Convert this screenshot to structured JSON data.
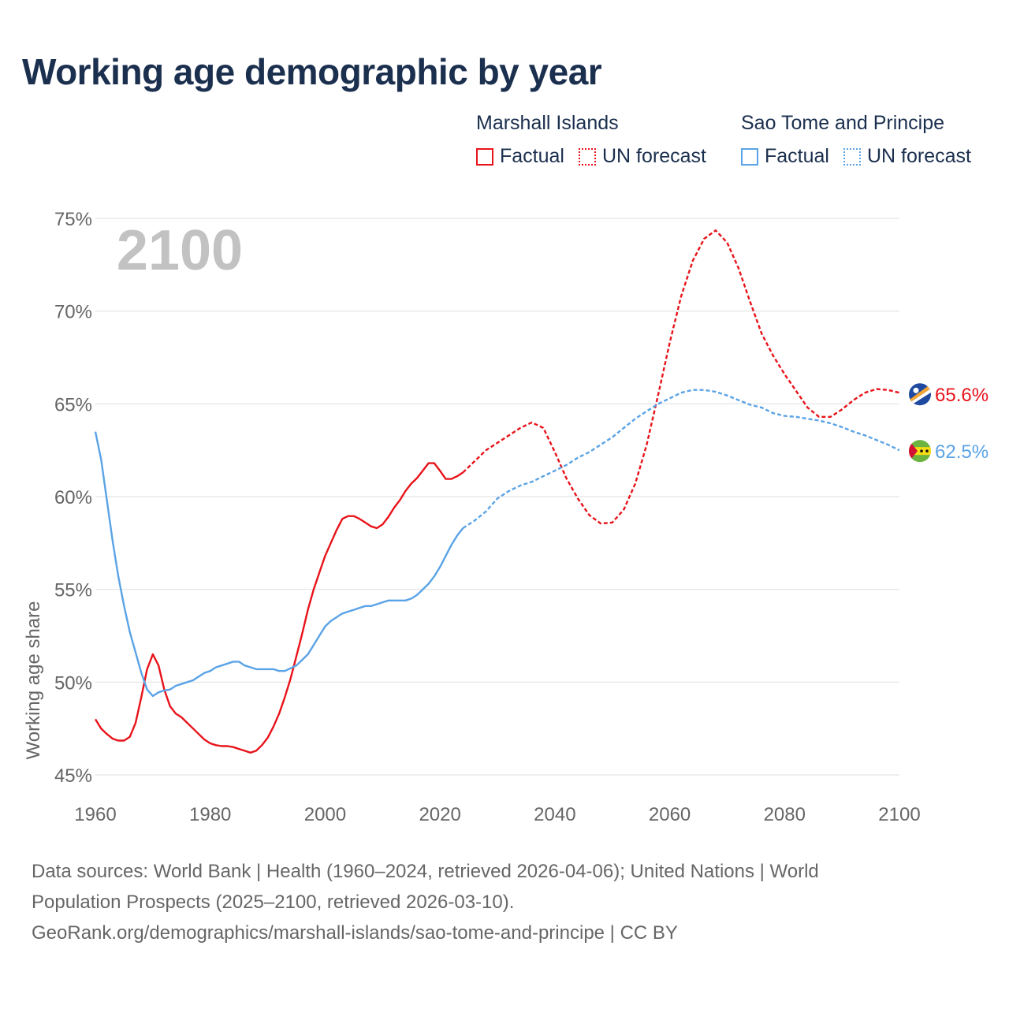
{
  "title": "Working age demographic by year",
  "colors": {
    "marshall": "#e8131a",
    "sao_tome": "#5aa3e6",
    "title": "#1b2f4e",
    "grid": "#e3e3e3",
    "axis_text": "#666666",
    "year_watermark": "#c2c2c2"
  },
  "legend": [
    {
      "name": "Marshall Islands",
      "factual_label": "Factual",
      "forecast_label": "UN forecast"
    },
    {
      "name": "Sao Tome and Principe",
      "factual_label": "Factual",
      "forecast_label": "UN forecast"
    }
  ],
  "chart_data": {
    "type": "line",
    "title": "Working age demographic by year",
    "xlabel": "",
    "ylabel": "Working age share",
    "xlim": [
      1960,
      2100
    ],
    "ylim": [
      45,
      75
    ],
    "x_ticks": [
      1960,
      1980,
      2000,
      2020,
      2040,
      2060,
      2080,
      2100
    ],
    "y_ticks": [
      45,
      50,
      55,
      60,
      65,
      70,
      75
    ],
    "y_tick_labels": [
      "45%",
      "50%",
      "55%",
      "60%",
      "65%",
      "70%",
      "75%"
    ],
    "year_display": "2100",
    "factual_range": "1960–2024",
    "forecast_range": "2025–2100",
    "series": [
      {
        "name": "Marshall Islands",
        "color": "#e8131a",
        "end_label": "65.6%",
        "flag_icon": "marshall-islands-flag-icon",
        "factual": {
          "x": [
            1960,
            1961,
            1962,
            1963,
            1964,
            1965,
            1966,
            1967,
            1968,
            1969,
            1970,
            1971,
            1972,
            1973,
            1974,
            1975,
            1976,
            1977,
            1978,
            1979,
            1980,
            1981,
            1982,
            1983,
            1984,
            1985,
            1986,
            1987,
            1988,
            1989,
            1990,
            1991,
            1992,
            1993,
            1994,
            1995,
            1996,
            1997,
            1998,
            1999,
            2000,
            2001,
            2002,
            2003,
            2004,
            2005,
            2006,
            2007,
            2008,
            2009,
            2010,
            2011,
            2012,
            2013,
            2014,
            2015,
            2016,
            2017,
            2018,
            2019,
            2020,
            2021,
            2022,
            2023,
            2024
          ],
          "y": [
            48.0,
            47.5,
            47.2,
            46.95,
            46.85,
            46.85,
            47.05,
            47.8,
            49.2,
            50.7,
            51.5,
            50.9,
            49.6,
            48.7,
            48.3,
            48.1,
            47.8,
            47.5,
            47.2,
            46.9,
            46.7,
            46.6,
            46.55,
            46.55,
            46.5,
            46.4,
            46.3,
            46.2,
            46.3,
            46.6,
            47.0,
            47.6,
            48.3,
            49.2,
            50.2,
            51.4,
            52.6,
            53.9,
            55.0,
            55.9,
            56.8,
            57.5,
            58.2,
            58.8,
            58.95,
            58.95,
            58.8,
            58.6,
            58.4,
            58.3,
            58.5,
            58.9,
            59.4,
            59.8,
            60.3,
            60.7,
            61.0,
            61.4,
            61.8,
            61.8,
            61.4,
            60.95,
            60.95,
            61.1,
            61.3
          ]
        },
        "forecast": {
          "x": [
            2024,
            2026,
            2028,
            2030,
            2032,
            2034,
            2036,
            2038,
            2040,
            2042,
            2044,
            2046,
            2048,
            2050,
            2052,
            2054,
            2056,
            2058,
            2060,
            2062,
            2064,
            2066,
            2068,
            2070,
            2072,
            2074,
            2076,
            2078,
            2080,
            2082,
            2084,
            2086,
            2088,
            2090,
            2092,
            2094,
            2096,
            2098,
            2100
          ],
          "y": [
            61.3,
            61.9,
            62.5,
            62.9,
            63.3,
            63.7,
            64.0,
            63.7,
            62.4,
            61.0,
            59.9,
            59.0,
            58.55,
            58.6,
            59.3,
            60.7,
            62.8,
            65.5,
            68.3,
            70.8,
            72.7,
            73.9,
            74.35,
            73.7,
            72.3,
            70.5,
            68.8,
            67.6,
            66.6,
            65.7,
            64.8,
            64.3,
            64.3,
            64.7,
            65.2,
            65.6,
            65.8,
            65.75,
            65.6
          ]
        }
      },
      {
        "name": "Sao Tome and Principe",
        "color": "#5aa3e6",
        "end_label": "62.5%",
        "flag_icon": "sao-tome-flag-icon",
        "factual": {
          "x": [
            1960,
            1961,
            1962,
            1963,
            1964,
            1965,
            1966,
            1967,
            1968,
            1969,
            1970,
            1971,
            1972,
            1973,
            1974,
            1975,
            1976,
            1977,
            1978,
            1979,
            1980,
            1981,
            1982,
            1983,
            1984,
            1985,
            1986,
            1987,
            1988,
            1989,
            1990,
            1991,
            1992,
            1993,
            1994,
            1995,
            1996,
            1997,
            1998,
            1999,
            2000,
            2001,
            2002,
            2003,
            2004,
            2005,
            2006,
            2007,
            2008,
            2009,
            2010,
            2011,
            2012,
            2013,
            2014,
            2015,
            2016,
            2017,
            2018,
            2019,
            2020,
            2021,
            2022,
            2023,
            2024
          ],
          "y": [
            63.5,
            62.0,
            59.8,
            57.6,
            55.7,
            54.1,
            52.7,
            51.6,
            50.5,
            49.6,
            49.25,
            49.45,
            49.55,
            49.6,
            49.8,
            49.9,
            50.0,
            50.1,
            50.3,
            50.5,
            50.6,
            50.8,
            50.9,
            51.0,
            51.1,
            51.1,
            50.9,
            50.8,
            50.7,
            50.7,
            50.7,
            50.7,
            50.6,
            50.6,
            50.75,
            50.9,
            51.2,
            51.5,
            52.0,
            52.5,
            53.0,
            53.3,
            53.5,
            53.7,
            53.8,
            53.9,
            54.0,
            54.1,
            54.1,
            54.2,
            54.3,
            54.4,
            54.4,
            54.4,
            54.4,
            54.5,
            54.7,
            55.0,
            55.3,
            55.7,
            56.2,
            56.8,
            57.4,
            57.9,
            58.3
          ]
        },
        "forecast": {
          "x": [
            2024,
            2026,
            2028,
            2030,
            2032,
            2034,
            2036,
            2038,
            2040,
            2042,
            2044,
            2046,
            2048,
            2050,
            2052,
            2054,
            2056,
            2058,
            2060,
            2062,
            2064,
            2066,
            2068,
            2070,
            2072,
            2074,
            2076,
            2078,
            2080,
            2082,
            2084,
            2086,
            2088,
            2090,
            2092,
            2094,
            2096,
            2098,
            2100
          ],
          "y": [
            58.3,
            58.7,
            59.2,
            59.9,
            60.3,
            60.6,
            60.8,
            61.1,
            61.4,
            61.7,
            62.1,
            62.4,
            62.8,
            63.2,
            63.7,
            64.2,
            64.6,
            65.0,
            65.3,
            65.6,
            65.75,
            65.75,
            65.65,
            65.45,
            65.2,
            64.95,
            64.8,
            64.5,
            64.35,
            64.3,
            64.2,
            64.1,
            63.95,
            63.75,
            63.5,
            63.3,
            63.05,
            62.8,
            62.5
          ]
        }
      }
    ]
  },
  "footer": {
    "line1": "Data sources: World Bank | Health (1960–2024, retrieved 2026-04-06); United Nations | World",
    "line2": "Population Prospects (2025–2100, retrieved 2026-03-10).",
    "line3": "GeoRank.org/demographics/marshall-islands/sao-tome-and-principe | CC BY"
  }
}
